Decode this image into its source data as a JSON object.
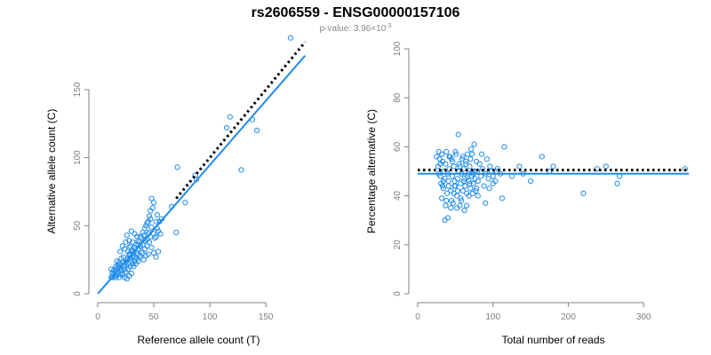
{
  "figure": {
    "title": "rs2606559 - ENSG00000157106",
    "subtitle_prefix": "p-value: 3.96×10",
    "subtitle_exponent": "-3",
    "point_color": "#1f8ceb",
    "fit_line_color": "#1f8ceb",
    "expected_line_color": "#000000"
  },
  "chart_data": [
    {
      "type": "scatter",
      "title": "",
      "xlabel": "Reference allele count (T)",
      "ylabel": "Alternative allele count (C)",
      "xlim": [
        0,
        180
      ],
      "ylim": [
        0,
        180
      ],
      "xticks": [
        0,
        50,
        100,
        150
      ],
      "yticks": [
        0,
        50,
        100,
        150
      ],
      "grid": false,
      "fit_line": {
        "style": "solid",
        "x": [
          0,
          185
        ],
        "y": [
          0,
          175
        ]
      },
      "expected_line": {
        "style": "dotted",
        "x": [
          70,
          185
        ],
        "y": [
          70,
          185
        ]
      },
      "points": [
        [
          12,
          12
        ],
        [
          13,
          15
        ],
        [
          14,
          17
        ],
        [
          15,
          13
        ],
        [
          16,
          18
        ],
        [
          13,
          12
        ],
        [
          17,
          14
        ],
        [
          18,
          16
        ],
        [
          19,
          12
        ],
        [
          20,
          14
        ],
        [
          21,
          17
        ],
        [
          22,
          15
        ],
        [
          14,
          14
        ],
        [
          16,
          12
        ],
        [
          18,
          19
        ],
        [
          15,
          16
        ],
        [
          12,
          18
        ],
        [
          20,
          19
        ],
        [
          19,
          23
        ],
        [
          17,
          24
        ],
        [
          22,
          23
        ],
        [
          24,
          18
        ],
        [
          25,
          21
        ],
        [
          23,
          27
        ],
        [
          26,
          25
        ],
        [
          27,
          22
        ],
        [
          28,
          29
        ],
        [
          29,
          26
        ],
        [
          30,
          24
        ],
        [
          31,
          28
        ],
        [
          32,
          30
        ],
        [
          21,
          26
        ],
        [
          20,
          31
        ],
        [
          22,
          35
        ],
        [
          24,
          33
        ],
        [
          25,
          38
        ],
        [
          28,
          34
        ],
        [
          30,
          31
        ],
        [
          33,
          27
        ],
        [
          35,
          29
        ],
        [
          36,
          33
        ],
        [
          38,
          35
        ],
        [
          37,
          38
        ],
        [
          40,
          36
        ],
        [
          39,
          41
        ],
        [
          41,
          43
        ],
        [
          42,
          39
        ],
        [
          44,
          40
        ],
        [
          45,
          44
        ],
        [
          47,
          42
        ],
        [
          46,
          45
        ],
        [
          48,
          49
        ],
        [
          50,
          44
        ],
        [
          51,
          41
        ],
        [
          52,
          42
        ],
        [
          54,
          46
        ],
        [
          53,
          48
        ],
        [
          56,
          44
        ],
        [
          26,
          43
        ],
        [
          28,
          39
        ],
        [
          30,
          46
        ],
        [
          33,
          44
        ],
        [
          35,
          42
        ],
        [
          27,
          31
        ],
        [
          29,
          35
        ],
        [
          31,
          38
        ],
        [
          34,
          36
        ],
        [
          36,
          39
        ],
        [
          38,
          42
        ],
        [
          40,
          45
        ],
        [
          42,
          48
        ],
        [
          44,
          52
        ],
        [
          46,
          57
        ],
        [
          47,
          61
        ],
        [
          49,
          63
        ],
        [
          50,
          67
        ],
        [
          48,
          70
        ],
        [
          43,
          50
        ],
        [
          45,
          53
        ],
        [
          47,
          55
        ],
        [
          52,
          53
        ],
        [
          55,
          53
        ],
        [
          57,
          55
        ],
        [
          53,
          58
        ],
        [
          32,
          20
        ],
        [
          34,
          22
        ],
        [
          36,
          24
        ],
        [
          38,
          27
        ],
        [
          40,
          30
        ],
        [
          42,
          33
        ],
        [
          44,
          35
        ],
        [
          46,
          38
        ],
        [
          48,
          34
        ],
        [
          50,
          30
        ],
        [
          52,
          27
        ],
        [
          54,
          31
        ],
        [
          28,
          13
        ],
        [
          30,
          15
        ],
        [
          26,
          11
        ],
        [
          24,
          12
        ],
        [
          22,
          14
        ],
        [
          25,
          16
        ],
        [
          27,
          18
        ],
        [
          29,
          20
        ],
        [
          31,
          22
        ],
        [
          33,
          24
        ],
        [
          35,
          26
        ],
        [
          37,
          28
        ],
        [
          39,
          31
        ],
        [
          41,
          25
        ],
        [
          43,
          28
        ],
        [
          45,
          29
        ],
        [
          16,
          20
        ],
        [
          18,
          21
        ],
        [
          20,
          22
        ],
        [
          23,
          20
        ],
        [
          25,
          23
        ],
        [
          27,
          26
        ],
        [
          29,
          29
        ],
        [
          31,
          32
        ],
        [
          33,
          34
        ],
        [
          36,
          36
        ],
        [
          66,
          64
        ],
        [
          70,
          45
        ],
        [
          71,
          93
        ],
        [
          78,
          67
        ],
        [
          87,
          87
        ],
        [
          88,
          84
        ],
        [
          115,
          122
        ],
        [
          118,
          130
        ],
        [
          128,
          91
        ],
        [
          138,
          128
        ],
        [
          142,
          120
        ],
        [
          172,
          188
        ]
      ]
    },
    {
      "type": "scatter",
      "title": "",
      "xlabel": "Total number of reads",
      "ylabel": "Percentage alternative (C)",
      "xlim": [
        0,
        360
      ],
      "ylim": [
        0,
        100
      ],
      "xticks": [
        0,
        100,
        200,
        300
      ],
      "yticks": [
        0,
        20,
        40,
        60,
        80,
        100
      ],
      "grid": false,
      "fit_line": {
        "style": "solid",
        "x": [
          0,
          360
        ],
        "y": [
          49,
          49
        ]
      },
      "expected_line": {
        "style": "dotted",
        "x": [
          0,
          360
        ],
        "y": [
          50.5,
          50.5
        ]
      },
      "points": [
        [
          25,
          56
        ],
        [
          27,
          52
        ],
        [
          28,
          58
        ],
        [
          29,
          55
        ],
        [
          30,
          48
        ],
        [
          31,
          45
        ],
        [
          32,
          57
        ],
        [
          33,
          54
        ],
        [
          34,
          43
        ],
        [
          35,
          50
        ],
        [
          36,
          47
        ],
        [
          37,
          53
        ],
        [
          38,
          58
        ],
        [
          39,
          41
        ],
        [
          40,
          49
        ],
        [
          41,
          44
        ],
        [
          42,
          51
        ],
        [
          43,
          56
        ],
        [
          44,
          42
        ],
        [
          45,
          55
        ],
        [
          46,
          48
        ],
        [
          47,
          37
        ],
        [
          48,
          52
        ],
        [
          49,
          46
        ],
        [
          50,
          44
        ],
        [
          51,
          57
        ],
        [
          52,
          40
        ],
        [
          53,
          47
        ],
        [
          54,
          50
        ],
        [
          55,
          53
        ],
        [
          56,
          36
        ],
        [
          57,
          45
        ],
        [
          58,
          49
        ],
        [
          59,
          55
        ],
        [
          60,
          42
        ],
        [
          61,
          51
        ],
        [
          62,
          47
        ],
        [
          63,
          44
        ],
        [
          64,
          53
        ],
        [
          65,
          41
        ],
        [
          66,
          57
        ],
        [
          67,
          49
        ],
        [
          68,
          46
        ],
        [
          69,
          52
        ],
        [
          70,
          43
        ],
        [
          71,
          59
        ],
        [
          72,
          48
        ],
        [
          73,
          50
        ],
        [
          74,
          45
        ],
        [
          75,
          61
        ],
        [
          76,
          47
        ],
        [
          77,
          42
        ],
        [
          78,
          54
        ],
        [
          79,
          50
        ],
        [
          80,
          46
        ],
        [
          82,
          53
        ],
        [
          84,
          48
        ],
        [
          86,
          51
        ],
        [
          88,
          44
        ],
        [
          90,
          49
        ],
        [
          92,
          55
        ],
        [
          94,
          47
        ],
        [
          96,
          52
        ],
        [
          98,
          50
        ],
        [
          100,
          48
        ],
        [
          103,
          46
        ],
        [
          106,
          51
        ],
        [
          110,
          49
        ],
        [
          28,
          49
        ],
        [
          30,
          53
        ],
        [
          32,
          39
        ],
        [
          34,
          46
        ],
        [
          36,
          30
        ],
        [
          38,
          38
        ],
        [
          40,
          31
        ],
        [
          42,
          56
        ],
        [
          44,
          35
        ],
        [
          46,
          54
        ],
        [
          48,
          41
        ],
        [
          50,
          58
        ],
        [
          52,
          35
        ],
        [
          54,
          65
        ],
        [
          56,
          52
        ],
        [
          58,
          38
        ],
        [
          60,
          56
        ],
        [
          62,
          34
        ],
        [
          64,
          54
        ],
        [
          66,
          48
        ],
        [
          68,
          40
        ],
        [
          70,
          55
        ],
        [
          72,
          57
        ],
        [
          74,
          49
        ],
        [
          76,
          50
        ],
        [
          78,
          43
        ],
        [
          80,
          40
        ],
        [
          85,
          57
        ],
        [
          90,
          37
        ],
        [
          95,
          43
        ],
        [
          100,
          45
        ],
        [
          105,
          50
        ],
        [
          115,
          60
        ],
        [
          112,
          39
        ],
        [
          125,
          48
        ],
        [
          135,
          52
        ],
        [
          140,
          49
        ],
        [
          150,
          46
        ],
        [
          165,
          56
        ],
        [
          175,
          50
        ],
        [
          180,
          52
        ],
        [
          220,
          41
        ],
        [
          238,
          51
        ],
        [
          250,
          52
        ],
        [
          265,
          45
        ],
        [
          268,
          48
        ],
        [
          355,
          51
        ],
        [
          33,
          44
        ],
        [
          37,
          36
        ],
        [
          41,
          46
        ],
        [
          45,
          38
        ],
        [
          49,
          44
        ],
        [
          53,
          42
        ],
        [
          57,
          39
        ],
        [
          61,
          46
        ],
        [
          65,
          36
        ],
        [
          69,
          45
        ],
        [
          73,
          41
        ]
      ]
    }
  ]
}
